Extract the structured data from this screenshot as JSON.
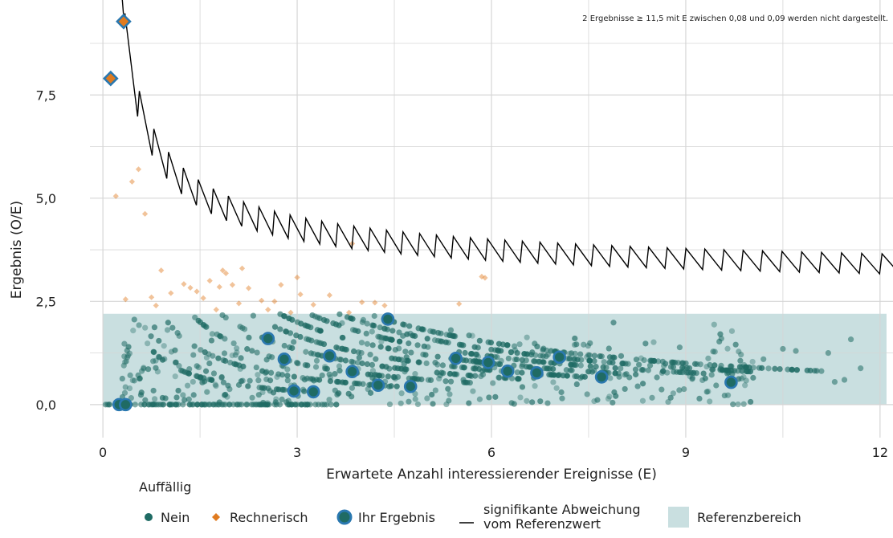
{
  "chart_data": {
    "type": "scatter",
    "note": "2 Ergebnisse ≥ 11,5 mit E zwischen 0,08 und 0,09 werden nicht dargestellt.",
    "xlabel": "Erwartete Anzahl interessierender Ereignisse (E)",
    "ylabel": "Ergebnis (O/E)",
    "xlim": [
      -0.2,
      12.2
    ],
    "ylim": [
      -0.8,
      9.8
    ],
    "xticks": [
      0,
      3,
      6,
      9,
      12
    ],
    "xtick_labels": [
      "0",
      "3",
      "6",
      "9",
      "12"
    ],
    "yticks": [
      0,
      2.5,
      5,
      7.5
    ],
    "ytick_labels": [
      "0,0",
      "2,5",
      "5,0",
      "7,5"
    ],
    "grid": true,
    "reference_range": {
      "x": [
        0,
        12.1
      ],
      "y": [
        0,
        2.2
      ]
    },
    "legend": {
      "title": "Auffällig",
      "placement": "bottom",
      "items": [
        "Nein",
        "Rechnerisch",
        "Ihr Ergebnis",
        "signifikante Abweichung vom Referenzwert",
        "Referenzbereich"
      ]
    },
    "colors": {
      "nein": "#1f6b64",
      "rechnerisch": "#e07b1f",
      "ihr_ergebnis_fill": "#1f6b64",
      "ihr_ergebnis_ring": "#2a78b0",
      "referenzbereich": "#c9dfe0",
      "grid": "#d6d6d6",
      "threshold": "#000000"
    },
    "series": [
      {
        "name": "Ihr Ergebnis",
        "x": [
          0.25,
          0.35,
          2.55,
          2.8,
          2.95,
          3.25,
          3.5,
          3.85,
          4.25,
          4.4,
          4.75,
          5.45,
          5.95,
          6.25,
          6.7,
          7.05,
          7.7,
          9.7,
          0.12,
          0.32
        ],
        "y": [
          0,
          0,
          1.6,
          1.1,
          0.33,
          0.31,
          1.18,
          0.8,
          0.47,
          2.07,
          0.44,
          1.12,
          1.02,
          0.81,
          0.77,
          1.15,
          0.67,
          0.54,
          7.9,
          9.28
        ]
      },
      {
        "name": "Rechnerisch",
        "x": [
          0.2,
          0.35,
          0.45,
          0.55,
          0.65,
          0.75,
          0.82,
          0.9,
          1.05,
          1.25,
          1.35,
          1.45,
          1.55,
          1.65,
          1.75,
          1.8,
          1.85,
          1.9,
          2.0,
          2.1,
          2.15,
          2.25,
          2.45,
          2.55,
          2.65,
          2.75,
          2.9,
          3.0,
          3.05,
          3.25,
          3.5,
          3.8,
          3.85,
          4.0,
          4.2,
          4.35,
          5.5,
          5.85,
          5.9
        ],
        "y": [
          5.05,
          2.55,
          5.4,
          5.7,
          4.62,
          2.6,
          2.4,
          3.25,
          2.7,
          2.92,
          2.83,
          2.74,
          2.58,
          3.0,
          2.3,
          2.85,
          3.25,
          3.18,
          2.9,
          2.45,
          3.3,
          2.82,
          2.52,
          2.3,
          2.5,
          2.9,
          2.23,
          3.08,
          2.67,
          2.42,
          2.65,
          2.23,
          3.9,
          2.48,
          2.47,
          2.4,
          2.44,
          3.1,
          3.07
        ]
      }
    ]
  }
}
